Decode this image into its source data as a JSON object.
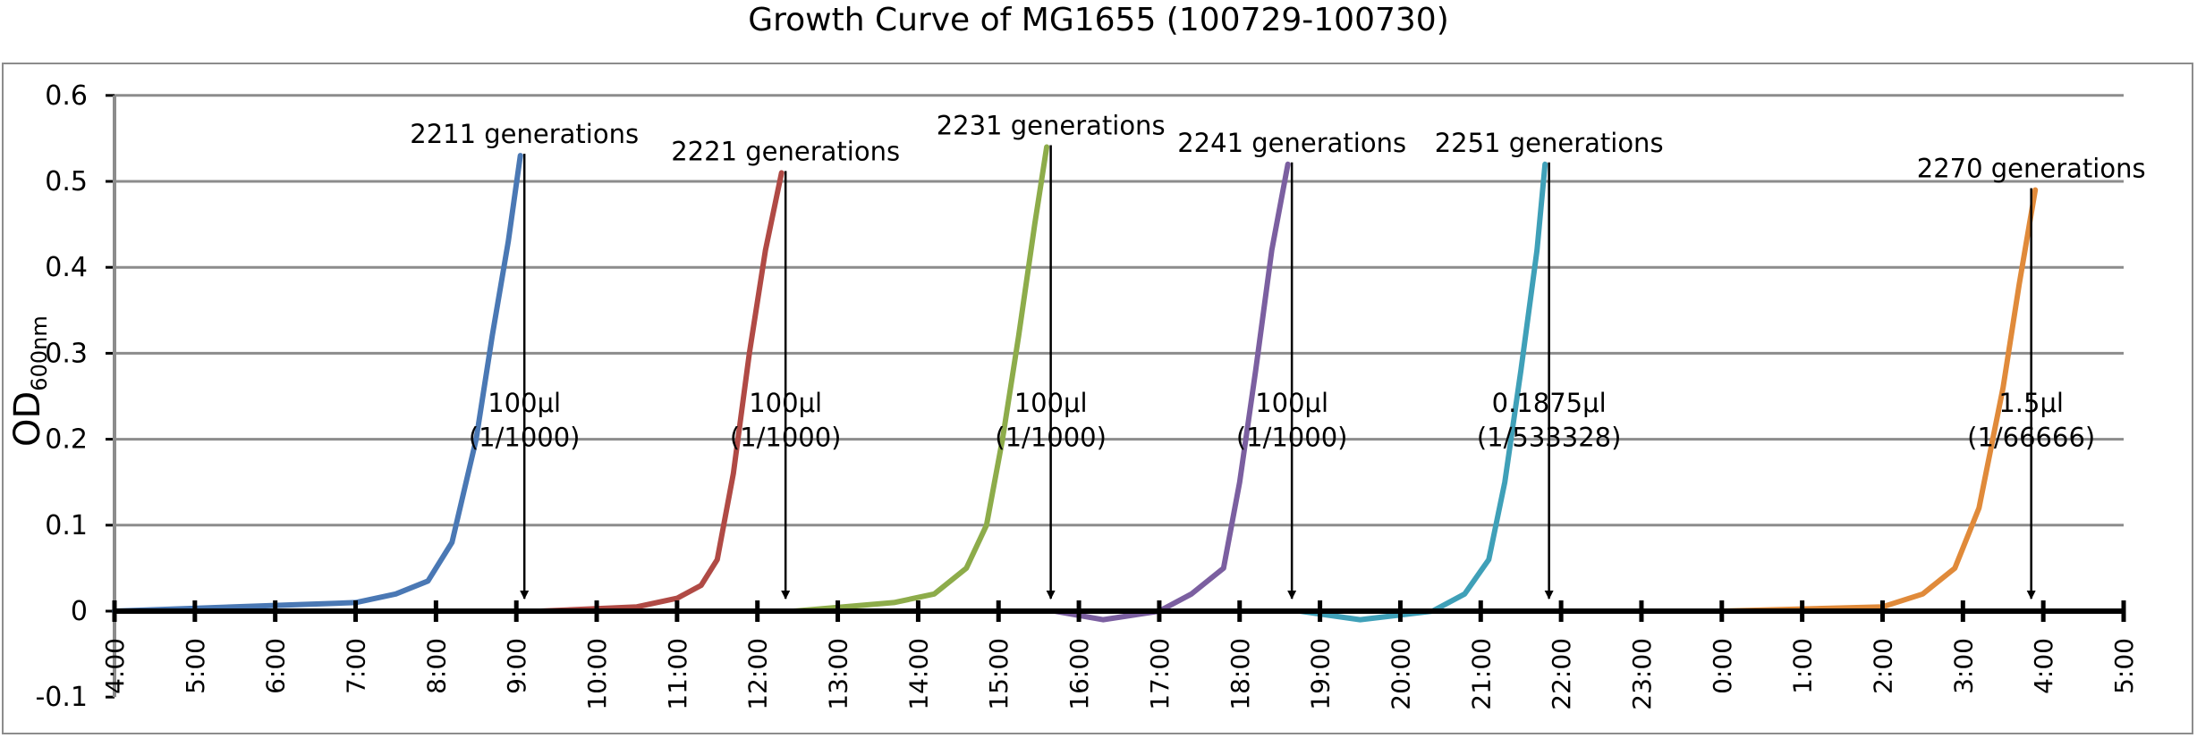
{
  "chart_data": {
    "type": "line",
    "title": "Growth Curve of MG1655 (100729-100730)",
    "ylabel_main": "OD",
    "ylabel_sub": "600nm",
    "xlabel": "",
    "ylim": [
      -0.1,
      0.6
    ],
    "y_ticks": [
      "0.6",
      "0.5",
      "0.4",
      "0.3",
      "0.2",
      "0.1",
      "0",
      "-0.1"
    ],
    "y_tick_values": [
      0.6,
      0.5,
      0.4,
      0.3,
      0.2,
      0.1,
      0,
      -0.1
    ],
    "x_range_hours": [
      4,
      29
    ],
    "x_ticks": [
      "4:00",
      "5:00",
      "6:00",
      "7:00",
      "8:00",
      "9:00",
      "10:00",
      "11:00",
      "12:00",
      "13:00",
      "14:00",
      "15:00",
      "16:00",
      "17:00",
      "18:00",
      "19:00",
      "20:00",
      "21:00",
      "22:00",
      "23:00",
      "0:00",
      "1:00",
      "2:00",
      "3:00",
      "4:00",
      "5:00"
    ],
    "x_tick_hours": [
      4,
      5,
      6,
      7,
      8,
      9,
      10,
      11,
      12,
      13,
      14,
      15,
      16,
      17,
      18,
      19,
      20,
      21,
      22,
      23,
      24,
      25,
      26,
      27,
      28,
      29
    ],
    "grid": true,
    "series": [
      {
        "color": "#4a78b4",
        "x": [
          4.0,
          7.0,
          7.5,
          7.9,
          8.2,
          8.5,
          8.7,
          8.9,
          9.05
        ],
        "y": [
          0.0,
          0.01,
          0.02,
          0.035,
          0.08,
          0.2,
          0.32,
          0.43,
          0.53
        ],
        "gen_label": "2211 generations",
        "arrow_x": 9.1,
        "dil_line1": "100μl",
        "dil_line2": "(1/1000)"
      },
      {
        "color": "#b04a45",
        "x": [
          9.3,
          10.5,
          11.0,
          11.3,
          11.5,
          11.7,
          11.9,
          12.1,
          12.3
        ],
        "y": [
          0.0,
          0.005,
          0.015,
          0.03,
          0.06,
          0.16,
          0.3,
          0.42,
          0.51
        ],
        "gen_label": "2221 generations",
        "arrow_x": 12.35,
        "dil_line1": "100μl",
        "dil_line2": "(1/1000)"
      },
      {
        "color": "#8dac4a",
        "x": [
          12.45,
          13.7,
          14.2,
          14.6,
          14.85,
          15.05,
          15.25,
          15.45,
          15.6
        ],
        "y": [
          0.0,
          0.01,
          0.02,
          0.05,
          0.1,
          0.2,
          0.32,
          0.45,
          0.54
        ],
        "gen_label": "2231 generations",
        "arrow_x": 15.65,
        "dil_line1": "100μl",
        "dil_line2": "(1/1000)"
      },
      {
        "color": "#7b5fa0",
        "x": [
          15.7,
          16.3,
          17.0,
          17.4,
          17.8,
          18.0,
          18.2,
          18.4,
          18.6
        ],
        "y": [
          0.0,
          -0.01,
          0.0,
          0.02,
          0.05,
          0.15,
          0.28,
          0.42,
          0.52
        ],
        "gen_label": "2241 generations",
        "arrow_x": 18.65,
        "dil_line1": "100μl",
        "dil_line2": "(1/1000)"
      },
      {
        "color": "#3fa0b8",
        "x": [
          18.75,
          19.5,
          20.4,
          20.8,
          21.1,
          21.3,
          21.5,
          21.7,
          21.8
        ],
        "y": [
          0.0,
          -0.01,
          0.0,
          0.02,
          0.06,
          0.15,
          0.28,
          0.42,
          0.52
        ],
        "gen_label": "2251 generations",
        "arrow_x": 21.85,
        "dil_line1": "0.1875μl",
        "dil_line2": "(1/533328)"
      },
      {
        "color": "#e08a3a",
        "x": [
          21.95,
          24.0,
          26.0,
          26.5,
          26.9,
          27.2,
          27.5,
          27.7,
          27.9
        ],
        "y": [
          0.0,
          0.0,
          0.005,
          0.02,
          0.05,
          0.12,
          0.26,
          0.38,
          0.49
        ],
        "gen_label": "2270 generations",
        "arrow_x": 27.85,
        "dil_line1": "1.5μl",
        "dil_line2": "(1/66666)"
      }
    ]
  }
}
